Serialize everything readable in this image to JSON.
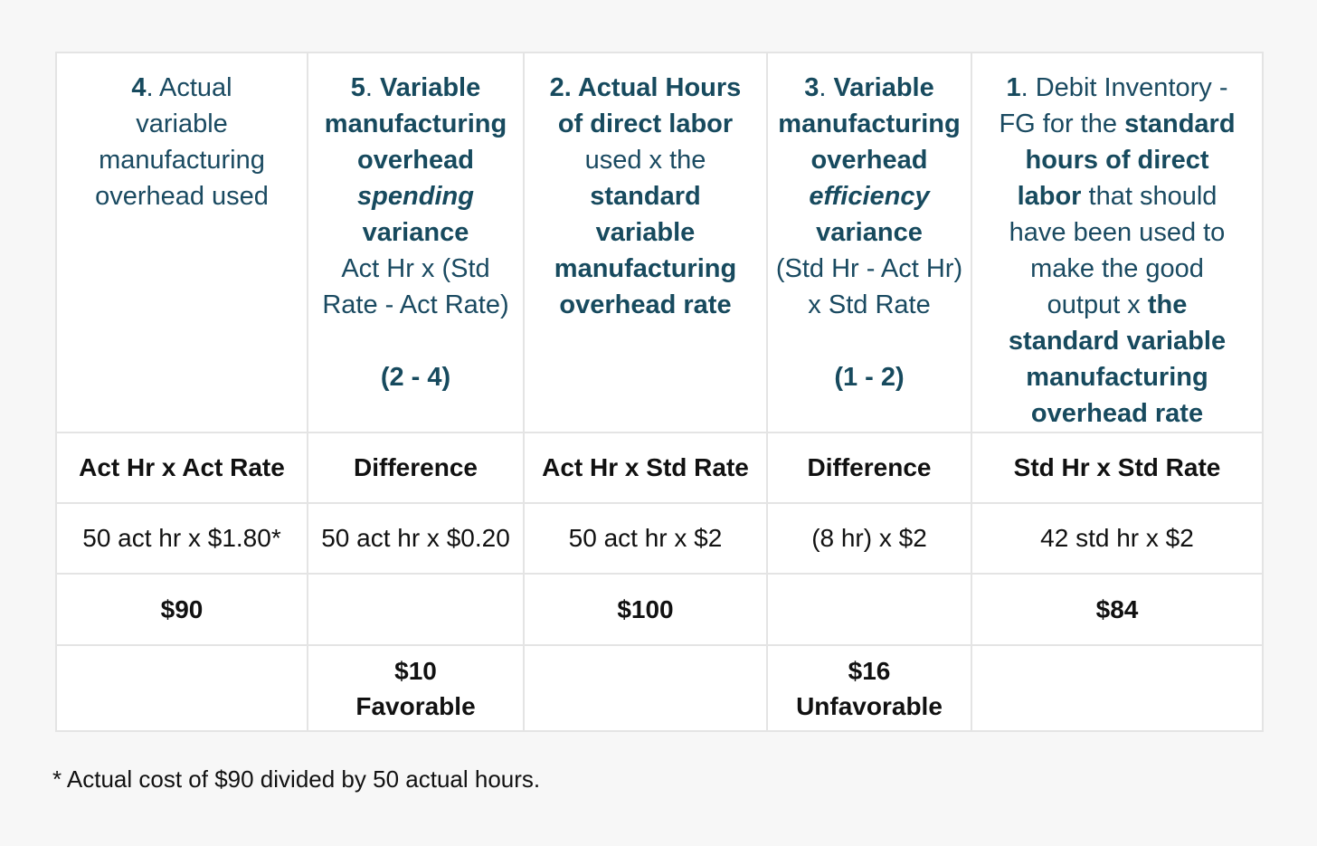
{
  "columns": [
    {
      "header": [
        [
          {
            "t": "4",
            "b": true
          },
          {
            "t": ". Actual"
          }
        ],
        [
          {
            "t": "variable"
          }
        ],
        [
          {
            "t": "manufacturing"
          }
        ],
        [
          {
            "t": "overhead used"
          }
        ]
      ],
      "label": "Act Hr x Act Rate",
      "calc": "50 act hr x $1.80*",
      "total": "$90",
      "variance_amount": "",
      "variance_type": ""
    },
    {
      "header": [
        [
          {
            "t": "5",
            "b": true
          },
          {
            "t": ". "
          },
          {
            "t": "Variable",
            "b": true
          }
        ],
        [
          {
            "t": "manufacturing",
            "b": true
          }
        ],
        [
          {
            "t": "overhead",
            "b": true
          }
        ],
        [
          {
            "t": "spending",
            "b": true,
            "i": true
          }
        ],
        [
          {
            "t": "variance",
            "b": true
          }
        ],
        [
          {
            "t": "Act Hr x (Std"
          }
        ],
        [
          {
            "t": "Rate - Act Rate)"
          }
        ],
        [],
        [
          {
            "t": "(2 - 4)",
            "b": true
          }
        ]
      ],
      "label": "Difference",
      "calc": "50 act hr x $0.20",
      "total": "",
      "variance_amount": "$10",
      "variance_type": "Favorable"
    },
    {
      "header": [
        [
          {
            "t": "2. Actual Hours",
            "b": true
          }
        ],
        [
          {
            "t": "of direct labor",
            "b": true
          }
        ],
        [
          {
            "t": "used x the"
          }
        ],
        [
          {
            "t": "standard",
            "b": true
          }
        ],
        [
          {
            "t": "variable",
            "b": true
          }
        ],
        [
          {
            "t": "manufacturing",
            "b": true
          }
        ],
        [
          {
            "t": "overhead rate",
            "b": true
          }
        ]
      ],
      "label": "Act Hr x Std Rate",
      "calc": "50 act hr x $2",
      "total": "$100",
      "variance_amount": "",
      "variance_type": ""
    },
    {
      "header": [
        [
          {
            "t": "3",
            "b": true
          },
          {
            "t": ". "
          },
          {
            "t": "Variable",
            "b": true
          }
        ],
        [
          {
            "t": "manufacturing",
            "b": true
          }
        ],
        [
          {
            "t": "overhead",
            "b": true
          }
        ],
        [
          {
            "t": "efficiency",
            "b": true,
            "i": true
          }
        ],
        [
          {
            "t": "variance",
            "b": true
          }
        ],
        [
          {
            "t": "(Std Hr - Act Hr)"
          }
        ],
        [
          {
            "t": "x Std Rate"
          }
        ],
        [],
        [
          {
            "t": "(1 - 2)",
            "b": true
          }
        ]
      ],
      "label": "Difference",
      "calc": "(8 hr) x $2",
      "total": "",
      "variance_amount": "$16",
      "variance_type": "Unfavorable"
    },
    {
      "header": [
        [
          {
            "t": "1",
            "b": true
          },
          {
            "t": ". Debit Inventory -"
          }
        ],
        [
          {
            "t": "FG for the "
          },
          {
            "t": "standard",
            "b": true
          }
        ],
        [
          {
            "t": "hours of direct",
            "b": true
          }
        ],
        [
          {
            "t": "labor",
            "b": true
          },
          {
            "t": " that should"
          }
        ],
        [
          {
            "t": "have been used to"
          }
        ],
        [
          {
            "t": "make the good"
          }
        ],
        [
          {
            "t": "output x "
          },
          {
            "t": "the",
            "b": true
          }
        ],
        [
          {
            "t": "standard variable",
            "b": true
          }
        ],
        [
          {
            "t": "manufacturing",
            "b": true
          }
        ],
        [
          {
            "t": "overhead rate",
            "b": true
          }
        ]
      ],
      "label": "Std Hr x Std Rate",
      "calc": "42 std hr x $2",
      "total": "$84",
      "variance_amount": "",
      "variance_type": ""
    }
  ],
  "footnote": "* Actual cost of $90 divided by 50 actual hours.",
  "colors": {
    "header_text": "#1a4a61",
    "body_text": "#111111",
    "border": "#e4e4e4",
    "background": "#f7f7f7"
  }
}
